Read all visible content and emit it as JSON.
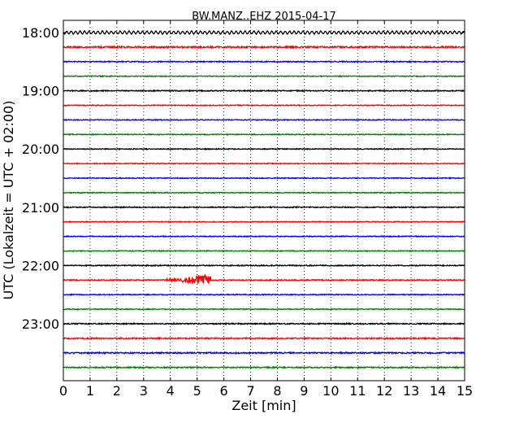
{
  "chart_data": {
    "type": "line",
    "title": "BW.MANZ..EHZ 2015-04-17",
    "xlabel": "Zeit  [min]",
    "ylabel": "UTC (Lokalzeit = UTC + 02:00)",
    "xlim": [
      0,
      15
    ],
    "x_ticks": [
      0,
      1,
      2,
      3,
      4,
      5,
      6,
      7,
      8,
      9,
      10,
      11,
      12,
      13,
      14,
      15
    ],
    "y_tick_labels": [
      "18:00",
      "19:00",
      "20:00",
      "21:00",
      "22:00",
      "23:00"
    ],
    "grid": "vertical dotted",
    "trace_colors": [
      "#000000",
      "#ff0000",
      "#0000ff",
      "#008000"
    ],
    "traces": [
      {
        "start": "18:00",
        "color": "#000000",
        "amplitude": 2.2,
        "oscillation": true
      },
      {
        "start": "18:15",
        "color": "#ff0000",
        "amplitude": 1.0
      },
      {
        "start": "18:30",
        "color": "#0000ff",
        "amplitude": 0.6
      },
      {
        "start": "18:45",
        "color": "#008000",
        "amplitude": 0.5
      },
      {
        "start": "19:00",
        "color": "#000000",
        "amplitude": 0.6
      },
      {
        "start": "19:15",
        "color": "#ff0000",
        "amplitude": 0.5
      },
      {
        "start": "19:30",
        "color": "#0000ff",
        "amplitude": 0.5
      },
      {
        "start": "19:45",
        "color": "#008000",
        "amplitude": 0.5
      },
      {
        "start": "20:00",
        "color": "#000000",
        "amplitude": 0.5
      },
      {
        "start": "20:15",
        "color": "#ff0000",
        "amplitude": 0.5
      },
      {
        "start": "20:30",
        "color": "#0000ff",
        "amplitude": 0.5
      },
      {
        "start": "20:45",
        "color": "#008000",
        "amplitude": 0.5
      },
      {
        "start": "21:00",
        "color": "#000000",
        "amplitude": 0.6
      },
      {
        "start": "21:15",
        "color": "#ff0000",
        "amplitude": 0.5
      },
      {
        "start": "21:30",
        "color": "#0000ff",
        "amplitude": 0.5
      },
      {
        "start": "21:45",
        "color": "#008000",
        "amplitude": 0.5
      },
      {
        "start": "22:00",
        "color": "#000000",
        "amplitude": 0.6
      },
      {
        "start": "22:15",
        "color": "#ff0000",
        "amplitude": 0.6,
        "events": [
          {
            "x_min": 3.8,
            "x_max": 5.5,
            "peak_min": 5.2,
            "amplitude": 7
          }
        ]
      },
      {
        "start": "22:30",
        "color": "#0000ff",
        "amplitude": 0.5
      },
      {
        "start": "22:45",
        "color": "#008000",
        "amplitude": 0.5
      },
      {
        "start": "23:00",
        "color": "#000000",
        "amplitude": 0.7
      },
      {
        "start": "23:15",
        "color": "#ff0000",
        "amplitude": 0.7
      },
      {
        "start": "23:30",
        "color": "#0000ff",
        "amplitude": 0.8
      },
      {
        "start": "23:45",
        "color": "#008000",
        "amplitude": 0.7
      }
    ]
  }
}
